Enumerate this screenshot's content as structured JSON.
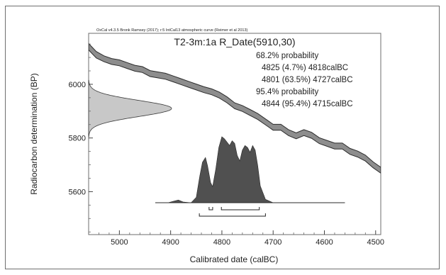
{
  "chart_data": {
    "type": "area",
    "credit": "OxCal v4.3.5 Bronk Ramsey (2017); r:5 IntCal13 atmospheric curve (Reimer et al 2013)",
    "title": "T2-3m:1a R_Date(5910,30)",
    "xlabel": "Calibrated date (calBC)",
    "ylabel": "Radiocarbon determination (BP)",
    "xlim": [
      5060,
      4490
    ],
    "ylim": [
      5440,
      6190
    ],
    "x_ticks": [
      5000,
      4900,
      4800,
      4700,
      4600,
      4500
    ],
    "y_ticks": [
      5600,
      5800,
      6000
    ],
    "annotations": [
      "68.2% probability",
      "4825 (4.7%) 4818calBC",
      "4801 (63.5%) 4727calBC",
      "95.4% probability",
      "4844 (95.4%) 4715calBC"
    ],
    "measurement": {
      "mean_bp": 5910,
      "sigma_bp": 30
    },
    "calibration_curve": {
      "x": [
        5060,
        5045,
        5030,
        5015,
        5000,
        4985,
        4970,
        4955,
        4940,
        4925,
        4910,
        4895,
        4880,
        4865,
        4850,
        4835,
        4820,
        4805,
        4790,
        4775,
        4760,
        4745,
        4730,
        4715,
        4700,
        4685,
        4670,
        4655,
        4640,
        4625,
        4610,
        4595,
        4580,
        4565,
        4550,
        4535,
        4520,
        4505,
        4490
      ],
      "y": [
        6140,
        6110,
        6095,
        6085,
        6080,
        6070,
        6060,
        6055,
        6040,
        6035,
        6030,
        6020,
        6010,
        6000,
        5990,
        5980,
        5972,
        5960,
        5942,
        5920,
        5910,
        5895,
        5880,
        5860,
        5840,
        5840,
        5820,
        5808,
        5820,
        5810,
        5790,
        5780,
        5770,
        5770,
        5750,
        5740,
        5725,
        5700,
        5680
      ],
      "sigma": [
        12,
        12,
        11,
        11,
        11,
        11,
        11,
        11,
        11,
        11,
        11,
        11,
        11,
        11,
        11,
        11,
        11,
        11,
        11,
        11,
        11,
        11,
        11,
        11,
        11,
        11,
        11,
        11,
        11,
        11,
        11,
        11,
        11,
        11,
        11,
        11,
        11,
        11,
        11
      ]
    },
    "calibrated_distribution": {
      "x": [
        4930,
        4905,
        4895,
        4885,
        4875,
        4860,
        4850,
        4843,
        4838,
        4832,
        4828,
        4822,
        4818,
        4812,
        4806,
        4800,
        4795,
        4790,
        4785,
        4780,
        4775,
        4770,
        4765,
        4760,
        4755,
        4750,
        4745,
        4740,
        4735,
        4730,
        4725,
        4715,
        4700,
        4560
      ],
      "y": [
        0,
        0,
        0.02,
        0.04,
        0.01,
        0,
        0.08,
        0.4,
        0.6,
        0.67,
        0.55,
        0.3,
        0.24,
        0.5,
        0.82,
        0.98,
        0.95,
        0.9,
        0.85,
        0.92,
        0.88,
        0.7,
        0.62,
        0.78,
        0.85,
        0.82,
        0.75,
        0.85,
        0.78,
        0.55,
        0.25,
        0.05,
        0,
        0
      ]
    },
    "ranges_68": [
      [
        4825,
        4818
      ],
      [
        4801,
        4727
      ]
    ],
    "ranges_95": [
      [
        4844,
        4715
      ]
    ]
  }
}
